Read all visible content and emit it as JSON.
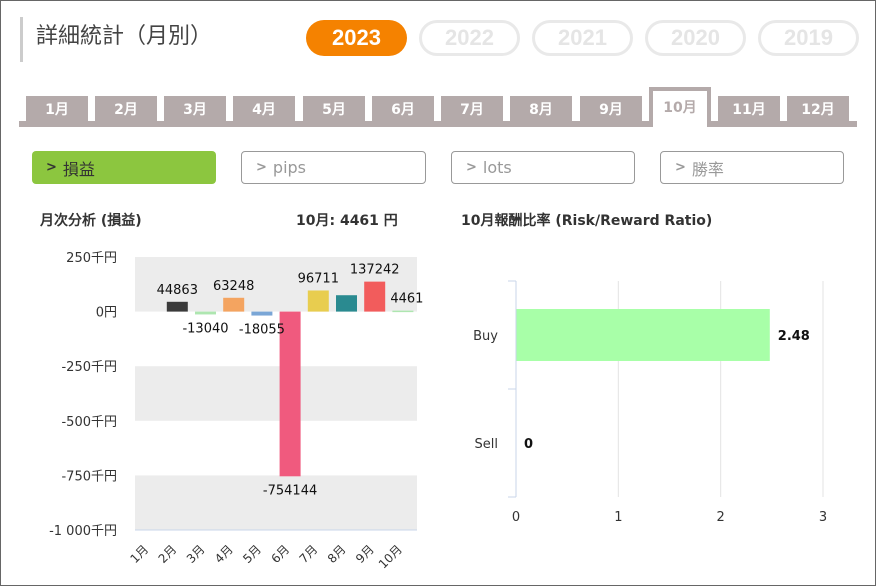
{
  "header": {
    "title": "詳細統計（月別）"
  },
  "years": [
    {
      "label": "2023",
      "active": true
    },
    {
      "label": "2022",
      "active": false
    },
    {
      "label": "2021",
      "active": false
    },
    {
      "label": "2020",
      "active": false
    },
    {
      "label": "2019",
      "active": false
    }
  ],
  "months": [
    "1月",
    "2月",
    "3月",
    "4月",
    "5月",
    "6月",
    "7月",
    "8月",
    "9月",
    "10月",
    "11月",
    "12月"
  ],
  "active_month_index": 9,
  "metrics": [
    {
      "label": "損益",
      "active": true
    },
    {
      "label": "pips",
      "active": false
    },
    {
      "label": "lots",
      "active": false
    },
    {
      "label": "勝率",
      "active": false
    }
  ],
  "colors": {
    "accent_orange": "#f58200",
    "accent_green": "#8cc63f",
    "tab_gray": "#b4aaaa"
  },
  "left_panel": {
    "title": "月次分析 (損益)",
    "summary": "10月:  4461 円"
  },
  "right_panel": {
    "title": "10月報酬比率 (Risk/Reward Ratio)"
  },
  "chart_data": [
    {
      "type": "bar",
      "categories": [
        "1月",
        "2月",
        "3月",
        "4月",
        "5月",
        "6月",
        "7月",
        "8月",
        "9月",
        "10月"
      ],
      "values": [
        null,
        44863,
        -13040,
        63248,
        -18055,
        -754144,
        96711,
        75000,
        137242,
        4461
      ],
      "data_labels": [
        "",
        "44863",
        "-13040",
        "63248",
        "-18055",
        "-754144",
        "96711",
        "",
        "137242",
        "4461"
      ],
      "bar_colors": [
        "",
        "#3a3a3a",
        "#aee6b0",
        "#f4a460",
        "#7aa6d6",
        "#f05a7e",
        "#e8cd4f",
        "#2a8a90",
        "#f25c5c",
        "#aee6b0"
      ],
      "ylim": [
        -1000000,
        250000
      ],
      "y_ticks": [
        250000,
        0,
        -250000,
        -500000,
        -750000,
        -1000000
      ],
      "y_tick_labels": [
        "250千円",
        "0円",
        "-250千円",
        "-500千円",
        "-750千円",
        "-1 000千円"
      ],
      "grid": true
    },
    {
      "type": "bar",
      "orientation": "horizontal",
      "categories": [
        "Buy",
        "Sell"
      ],
      "values": [
        2.48,
        0
      ],
      "data_labels": [
        "2.48",
        "0"
      ],
      "bar_colors": [
        "#a8ffa8",
        "#a8ffa8"
      ],
      "xlim": [
        0,
        3
      ],
      "x_ticks": [
        0,
        1,
        2,
        3
      ],
      "x_tick_labels": [
        "0",
        "1",
        "2",
        "3"
      ],
      "grid": true
    }
  ]
}
